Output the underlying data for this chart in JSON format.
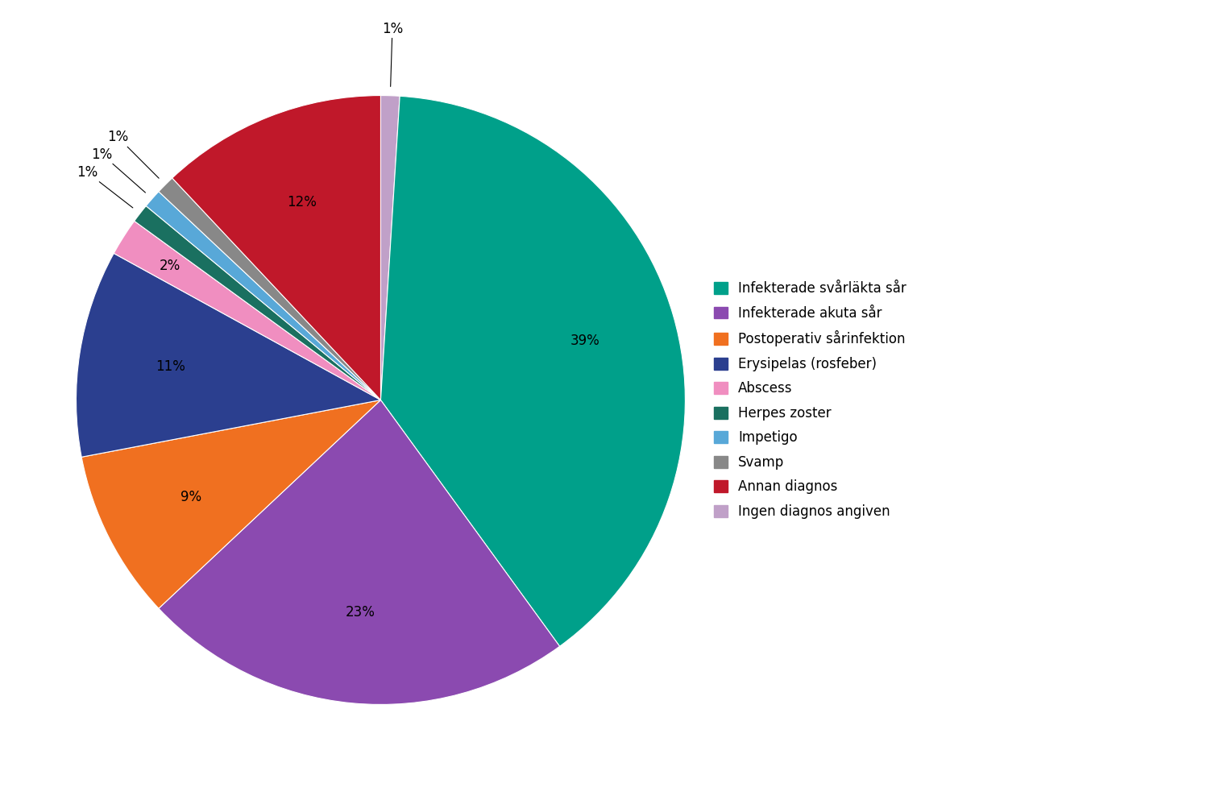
{
  "labels": [
    "Infekterade svårläkta sår",
    "Infekterade akuta sår",
    "Postoperativ sårinfektion",
    "Erysipelas (rosfeber)",
    "Abscess",
    "Herpes zoster",
    "Impetigo",
    "Svamp",
    "Annan diagnos",
    "Ingen diagnos angiven"
  ],
  "colors": [
    "#00A08A",
    "#8B4AB0",
    "#F07020",
    "#2B3F8F",
    "#F08EC0",
    "#1A7060",
    "#58A8D8",
    "#888888",
    "#C0182A",
    "#C0A0C8"
  ],
  "plot_values": [
    1,
    39,
    23,
    9,
    11,
    2,
    1,
    1,
    1,
    12
  ],
  "plot_colors": [
    "#C0A0C8",
    "#00A08A",
    "#8B4AB0",
    "#F07020",
    "#2B3F8F",
    "#F08EC0",
    "#1A7060",
    "#58A8D8",
    "#888888",
    "#C0182A"
  ],
  "plot_pcts": [
    "1%",
    "39%",
    "23%",
    "9%",
    "11%",
    "2%",
    "1%",
    "1%",
    "1%",
    "12%"
  ],
  "background_color": "#ffffff",
  "legend_fontsize": 12,
  "pct_fontsize": 12
}
